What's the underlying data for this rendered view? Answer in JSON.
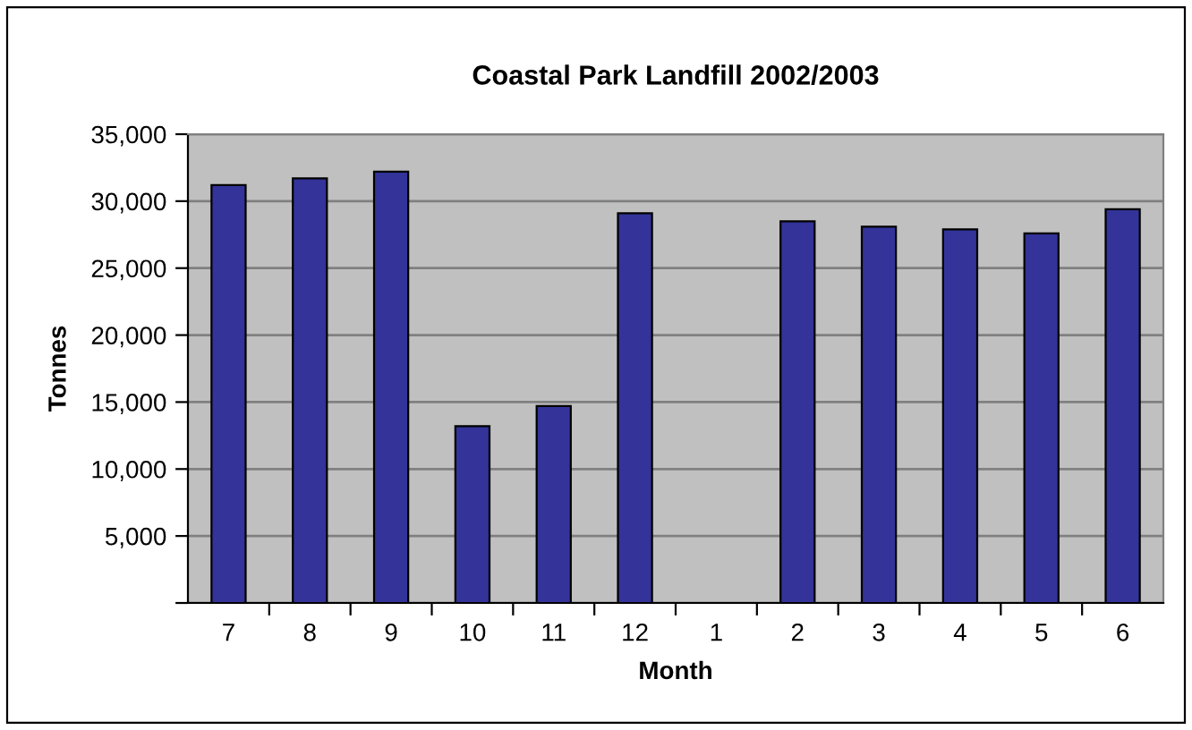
{
  "chart_data": {
    "type": "bar",
    "title": "Coastal Park Landfill 2002/2003",
    "xlabel": "Month",
    "ylabel": "Tonnes",
    "categories": [
      "7",
      "8",
      "9",
      "10",
      "11",
      "12",
      "1",
      "2",
      "3",
      "4",
      "5",
      "6"
    ],
    "values": [
      31200,
      31700,
      32200,
      13200,
      14700,
      29100,
      null,
      28500,
      28100,
      27900,
      27600,
      29400
    ],
    "color": "#333399",
    "ylim": [
      0,
      35000
    ],
    "yticks": [
      {
        "value": 0,
        "label": null
      },
      {
        "value": 5000,
        "label": "5,000"
      },
      {
        "value": 10000,
        "label": "10,000"
      },
      {
        "value": 15000,
        "label": "15,000"
      },
      {
        "value": 20000,
        "label": "20,000"
      },
      {
        "value": 25000,
        "label": "25,000"
      },
      {
        "value": 30000,
        "label": "30,000"
      },
      {
        "value": 35000,
        "label": "35,000"
      }
    ],
    "grid": "y",
    "legend": false
  }
}
